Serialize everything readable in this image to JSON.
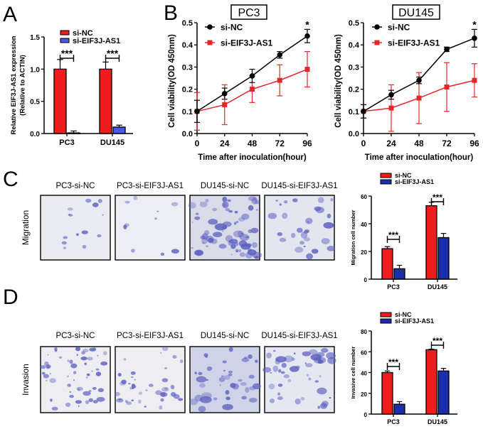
{
  "panel_letters": [
    "A",
    "B",
    "C",
    "D"
  ],
  "colors": {
    "si_nc_bar": "#ee1c1c",
    "si_eif3j_bar_A": "#4a57e6",
    "si_eif3j_bar_CD": "#1b2fa8",
    "si_nc_line": "#000000",
    "si_eif3j_line": "#e8262a",
    "stain": "#5b5fbf"
  },
  "panel_C": {
    "row_label": "Migration",
    "image_labels": [
      "PC3-si-NC",
      "PC3-si-EIF3J-AS1",
      "DU145-si-NC",
      "DU145-si-EIF3J-AS1"
    ]
  },
  "panel_D": {
    "row_label": "Invasion",
    "image_labels": [
      "PC3-si-NC",
      "PC3-si-EIF3J-AS1",
      "DU145-si-NC",
      "DU145-si-EIF3J-AS1"
    ]
  },
  "chart_data": [
    {
      "id": "A",
      "type": "bar",
      "categories": [
        "PC3",
        "DU145"
      ],
      "ylabel": [
        "Relative EIF3J-AS1 expression",
        "(Relative to ACTIN)"
      ],
      "ylim": [
        0,
        1.5
      ],
      "yticks": [
        "0.0",
        "0.5",
        "1.0",
        "1.5"
      ],
      "ytick_values": [
        0,
        0.5,
        1.0,
        1.5
      ],
      "legend": "top",
      "significance": [
        "***",
        "***"
      ],
      "series": [
        {
          "name": "si-NC",
          "values": [
            1.0,
            1.0
          ],
          "errors": [
            0.15,
            0.11
          ]
        },
        {
          "name": "si-EIF3J-AS1",
          "values": [
            0.01,
            0.1
          ],
          "errors": [
            0.03,
            0.03
          ]
        }
      ]
    },
    {
      "id": "B-PC3",
      "type": "line",
      "title": "PC3",
      "xlabel": "Time after inoculation(hour)",
      "ylabel": "Cell viability(OD 450nm)",
      "x": [
        0,
        24,
        48,
        72,
        96
      ],
      "xticks": [
        "0",
        "24",
        "48",
        "72",
        "96"
      ],
      "ylim": [
        0,
        0.5
      ],
      "yticks": [
        "0.0",
        "0.1",
        "0.2",
        "0.3",
        "0.4",
        "0.5"
      ],
      "ytick_values": [
        0,
        0.1,
        0.2,
        0.3,
        0.4,
        0.5
      ],
      "legend": "top-left",
      "annotation": "*",
      "series": [
        {
          "name": "si-NC",
          "values": [
            0.1,
            0.18,
            0.26,
            0.355,
            0.44
          ],
          "errors": [
            0.05,
            0.025,
            0.03,
            0.015,
            0.03
          ]
        },
        {
          "name": "si-EIF3J-AS1",
          "values": [
            0.1,
            0.13,
            0.2,
            0.24,
            0.29
          ],
          "errors": [
            0.085,
            0.09,
            0.06,
            0.07,
            0.08
          ]
        }
      ]
    },
    {
      "id": "B-DU145",
      "type": "line",
      "title": "DU145",
      "xlabel": "Time after inoculation(hour)",
      "ylabel": "Cell viability(OD 450nm)",
      "x": [
        0,
        24,
        48,
        72,
        96
      ],
      "xticks": [
        "0",
        "24",
        "48",
        "72",
        "96"
      ],
      "ylim": [
        0,
        0.5
      ],
      "yticks": [
        "0.0",
        "0.1",
        "0.2",
        "0.3",
        "0.4",
        "0.5"
      ],
      "ytick_values": [
        0,
        0.1,
        0.2,
        0.3,
        0.4,
        0.5
      ],
      "legend": "top-left",
      "annotation": "*",
      "series": [
        {
          "name": "si-NC",
          "values": [
            0.1,
            0.175,
            0.24,
            0.38,
            0.43
          ],
          "errors": [
            0.03,
            0.02,
            0.015,
            0.01,
            0.04
          ]
        },
        {
          "name": "si-EIF3J-AS1",
          "values": [
            0.1,
            0.115,
            0.16,
            0.21,
            0.24
          ],
          "errors": [
            0.03,
            0.105,
            0.115,
            0.11,
            0.075
          ]
        }
      ]
    },
    {
      "id": "C",
      "type": "bar",
      "categories": [
        "PC3",
        "DU145"
      ],
      "ylabel": [
        "Migration cell number"
      ],
      "ylim": [
        0,
        60
      ],
      "yticks": [
        "0",
        "20",
        "40",
        "60"
      ],
      "ytick_values": [
        0,
        20,
        40,
        60
      ],
      "legend": "top",
      "significance": [
        "***",
        "***"
      ],
      "series": [
        {
          "name": "si-NC",
          "values": [
            22,
            53
          ],
          "errors": [
            1.5,
            2.5
          ]
        },
        {
          "name": "si-EIF3J-AS1",
          "values": [
            7.5,
            30
          ],
          "errors": [
            2.5,
            3
          ]
        }
      ]
    },
    {
      "id": "D",
      "type": "bar",
      "categories": [
        "PC3",
        "DU145"
      ],
      "ylabel": [
        "Invasive cell number"
      ],
      "ylim": [
        0,
        80
      ],
      "yticks": [
        "0",
        "20",
        "40",
        "60",
        "80"
      ],
      "ytick_values": [
        0,
        20,
        40,
        60,
        80
      ],
      "legend": "top",
      "significance": [
        "***",
        "***"
      ],
      "series": [
        {
          "name": "si-NC",
          "values": [
            40,
            62
          ],
          "errors": [
            1.5,
            0.5
          ]
        },
        {
          "name": "si-EIF3J-AS1",
          "values": [
            9.5,
            41.5
          ],
          "errors": [
            2.5,
            2.5
          ]
        }
      ]
    }
  ]
}
